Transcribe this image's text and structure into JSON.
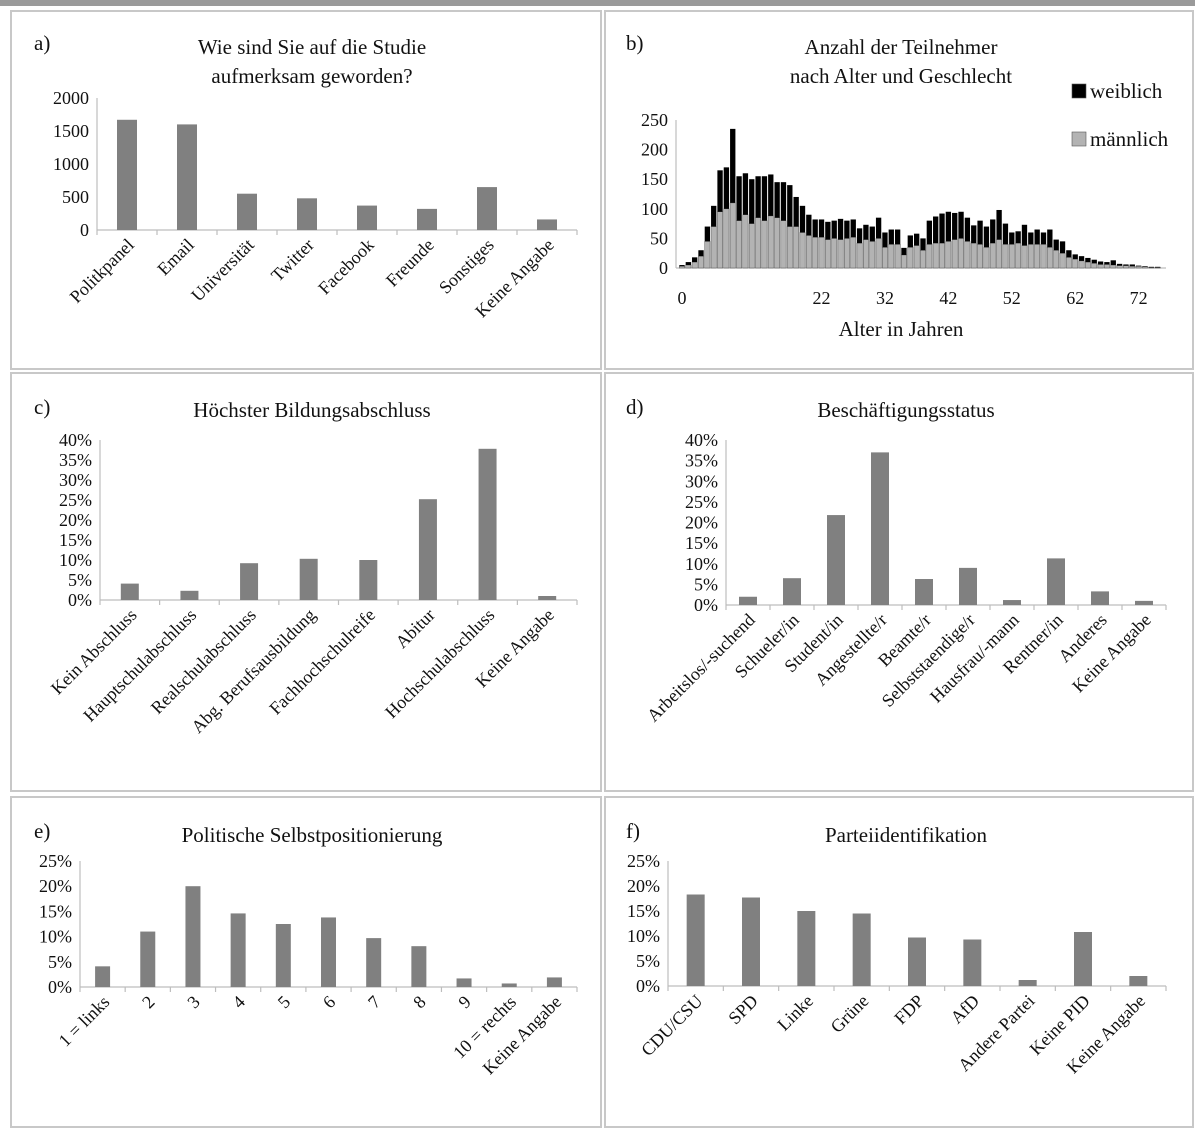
{
  "colors": {
    "bar": "#808080",
    "female": "#000000",
    "male": "#b3b3b3",
    "frame": "#c8c8c8"
  },
  "chart_data": [
    {
      "id": "a",
      "label": "a)",
      "type": "bar",
      "title": [
        "Wie sind Sie auf die Studie",
        "aufmerksam geworden?"
      ],
      "categories": [
        "Politkpanel",
        "Email",
        "Universität",
        "Twitter",
        "Facebook",
        "Freunde",
        "Sonstiges",
        "Keine Angabe"
      ],
      "values": [
        1670,
        1600,
        550,
        480,
        370,
        320,
        650,
        160
      ],
      "ylim": [
        0,
        2000
      ],
      "yticks": [
        "0",
        "500",
        "1000",
        "1500",
        "2000"
      ],
      "yticks_values": [
        0,
        500,
        1000,
        1500,
        2000
      ]
    },
    {
      "id": "b",
      "label": "b)",
      "type": "bar",
      "stacked": true,
      "title": [
        "Anzahl der Teilnehmer",
        "nach Alter und Geschlecht"
      ],
      "xlabel": "Alter in Jahren",
      "x_start": 0,
      "xticks": [
        "0",
        "22",
        "32",
        "42",
        "52",
        "62",
        "72",
        "82"
      ],
      "xticks_values": [
        0,
        22,
        32,
        42,
        52,
        62,
        72,
        82
      ],
      "ylim": [
        0,
        250
      ],
      "yticks": [
        "0",
        "50",
        "100",
        "150",
        "200",
        "250"
      ],
      "yticks_values": [
        0,
        50,
        100,
        150,
        200,
        250
      ],
      "legend": [
        "weiblich",
        "männlich"
      ],
      "series": [
        {
          "name": "männlich",
          "values": [
            3,
            5,
            10,
            20,
            45,
            70,
            95,
            100,
            110,
            80,
            90,
            75,
            85,
            80,
            88,
            85,
            80,
            70,
            70,
            60,
            55,
            52,
            52,
            48,
            50,
            48,
            50,
            52,
            42,
            48,
            45,
            50,
            35,
            40,
            40,
            22,
            35,
            38,
            30,
            40,
            42,
            42,
            45,
            48,
            50,
            45,
            42,
            40,
            35,
            42,
            48,
            40,
            40,
            42,
            38,
            40,
            40,
            40,
            35,
            30,
            25,
            18,
            15,
            12,
            10,
            8,
            6,
            6,
            5,
            4,
            4,
            3,
            3,
            2,
            1,
            1
          ]
        },
        {
          "name": "weiblich",
          "values": [
            2,
            5,
            8,
            10,
            25,
            35,
            70,
            70,
            125,
            75,
            70,
            75,
            70,
            75,
            70,
            60,
            65,
            70,
            50,
            45,
            35,
            30,
            30,
            30,
            30,
            35,
            30,
            30,
            25,
            25,
            25,
            35,
            25,
            25,
            25,
            12,
            20,
            20,
            20,
            40,
            45,
            50,
            50,
            45,
            45,
            40,
            30,
            40,
            35,
            40,
            50,
            35,
            20,
            20,
            35,
            20,
            25,
            20,
            30,
            18,
            20,
            12,
            8,
            8,
            7,
            6,
            5,
            4,
            8,
            3,
            2,
            3,
            1,
            1,
            1,
            1
          ]
        }
      ]
    },
    {
      "id": "c",
      "label": "c)",
      "type": "bar",
      "title": [
        "Höchster Bildungsabschluss"
      ],
      "categories": [
        "Kein Abschluss",
        "Hauptschulabschluss",
        "Realschulabschluss",
        "Abg. Berufsausbildung",
        "Fachhochschulreife",
        "Abitur",
        "Hochschulabschluss",
        "Keine Angabe"
      ],
      "values": [
        0.041,
        0.023,
        0.092,
        0.103,
        0.1,
        0.252,
        0.378,
        0.01
      ],
      "ylim": [
        0,
        0.4
      ],
      "yticks": [
        "0%",
        "5%",
        "10%",
        "15%",
        "20%",
        "25%",
        "30%",
        "35%",
        "40%"
      ],
      "yticks_values": [
        0,
        0.05,
        0.1,
        0.15,
        0.2,
        0.25,
        0.3,
        0.35,
        0.4
      ]
    },
    {
      "id": "d",
      "label": "d)",
      "type": "bar",
      "title": [
        "Beschäftigungsstatus"
      ],
      "categories": [
        "Arbeitslos/-suchend",
        "Schueler/in",
        "Student/in",
        "Angestellte/r",
        "Beamte/r",
        "Selbststaendige/r",
        "Hausfrau/-mann",
        "Rentner/in",
        "Anderes",
        "Keine Angabe"
      ],
      "values": [
        0.02,
        0.065,
        0.218,
        0.37,
        0.063,
        0.09,
        0.012,
        0.113,
        0.033,
        0.01
      ],
      "ylim": [
        0,
        0.4
      ],
      "yticks": [
        "0%",
        "5%",
        "10%",
        "15%",
        "20%",
        "25%",
        "30%",
        "35%",
        "40%"
      ],
      "yticks_values": [
        0,
        0.05,
        0.1,
        0.15,
        0.2,
        0.25,
        0.3,
        0.35,
        0.4
      ]
    },
    {
      "id": "e",
      "label": "e)",
      "type": "bar",
      "title": [
        "Politische Selbstpositionierung"
      ],
      "categories": [
        "1 = links",
        "2",
        "3",
        "4",
        "5",
        "6",
        "7",
        "8",
        "9",
        "10 = rechts",
        "Keine Angabe"
      ],
      "values": [
        0.041,
        0.11,
        0.2,
        0.146,
        0.125,
        0.138,
        0.097,
        0.081,
        0.017,
        0.007,
        0.019
      ],
      "ylim": [
        0,
        0.25
      ],
      "yticks": [
        "0%",
        "5%",
        "10%",
        "15%",
        "20%",
        "25%"
      ],
      "yticks_values": [
        0,
        0.05,
        0.1,
        0.15,
        0.2,
        0.25
      ]
    },
    {
      "id": "f",
      "label": "f)",
      "type": "bar",
      "title": [
        "Parteiidentifikation"
      ],
      "categories": [
        "CDU/CSU",
        "SPD",
        "Linke",
        "Grüne",
        "FDP",
        "AfD",
        "Andere Partei",
        "Keine PID",
        "Keine Angabe"
      ],
      "values": [
        0.183,
        0.177,
        0.15,
        0.145,
        0.097,
        0.093,
        0.012,
        0.108,
        0.02
      ],
      "ylim": [
        0,
        0.25
      ],
      "yticks": [
        "0%",
        "5%",
        "10%",
        "15%",
        "20%",
        "25%"
      ],
      "yticks_values": [
        0,
        0.05,
        0.1,
        0.15,
        0.2,
        0.25
      ]
    }
  ]
}
